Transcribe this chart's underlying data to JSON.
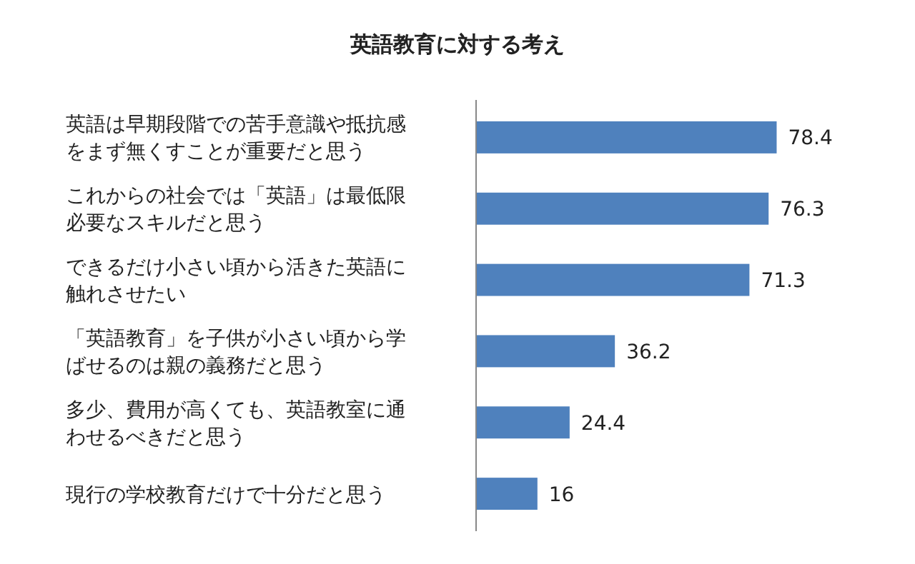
{
  "chart_data": {
    "type": "bar",
    "orientation": "horizontal",
    "title": "英語教育に対する考え",
    "categories": [
      "英語は早期段階での苦手意識や抵抗感をまず無くすことが重要だと思う",
      "これからの社会では「英語」は最低限必要なスキルだと思う",
      "できるだけ小さい頃から活きた英語に触れさせたい",
      "「英語教育」を子供が小さい頃から学ばせるのは親の義務だと思う",
      "多少、費用が高くても、英語教室に通わせるべきだと思う",
      "現行の学校教育だけで十分だと思う"
    ],
    "values": [
      78.4,
      76.3,
      71.3,
      36.2,
      24.4,
      16
    ],
    "color": "#4f81bd",
    "data_labels": true
  }
}
